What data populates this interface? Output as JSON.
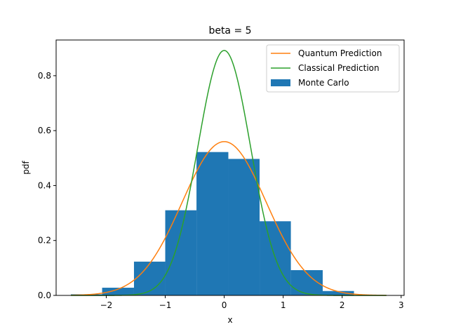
{
  "chart_data": {
    "type": "bar",
    "title": "beta = 5",
    "xlabel": "x",
    "ylabel": "pdf",
    "xlim": [
      -2.85,
      3.05
    ],
    "ylim": [
      0,
      0.93
    ],
    "xticks": [
      -2,
      -1,
      0,
      1,
      2,
      3
    ],
    "xtick_labels": [
      "−2",
      "−1",
      "0",
      "1",
      "2",
      "3"
    ],
    "yticks": [
      0.0,
      0.2,
      0.4,
      0.6,
      0.8
    ],
    "ytick_labels": [
      "0.0",
      "0.2",
      "0.4",
      "0.6",
      "0.8"
    ],
    "grid": false,
    "legend_position": "top-right",
    "histogram": {
      "name": "Monte Carlo",
      "color": "#1f77b4",
      "bin_edges": [
        -2.6,
        -2.07,
        -1.53,
        -1.0,
        -0.47,
        0.07,
        0.6,
        1.13,
        1.67,
        2.2
      ],
      "values": [
        0.004,
        0.028,
        0.123,
        0.31,
        0.522,
        0.497,
        0.27,
        0.092,
        0.016
      ]
    },
    "series": [
      {
        "name": "Quantum Prediction",
        "color": "#ff7f0e",
        "kind": "gaussian",
        "mu": 0,
        "peak": 0.56,
        "sigma": 0.712
      },
      {
        "name": "Classical Prediction",
        "color": "#2ca02c",
        "kind": "gaussian",
        "mu": 0,
        "peak": 0.892,
        "sigma": 0.447
      }
    ],
    "curve_range": [
      -2.6,
      2.75
    ],
    "legend": [
      {
        "label": "Quantum Prediction",
        "kind": "line",
        "color": "#ff7f0e"
      },
      {
        "label": "Classical Prediction",
        "kind": "line",
        "color": "#2ca02c"
      },
      {
        "label": "Monte Carlo",
        "kind": "patch",
        "color": "#1f77b4"
      }
    ]
  }
}
